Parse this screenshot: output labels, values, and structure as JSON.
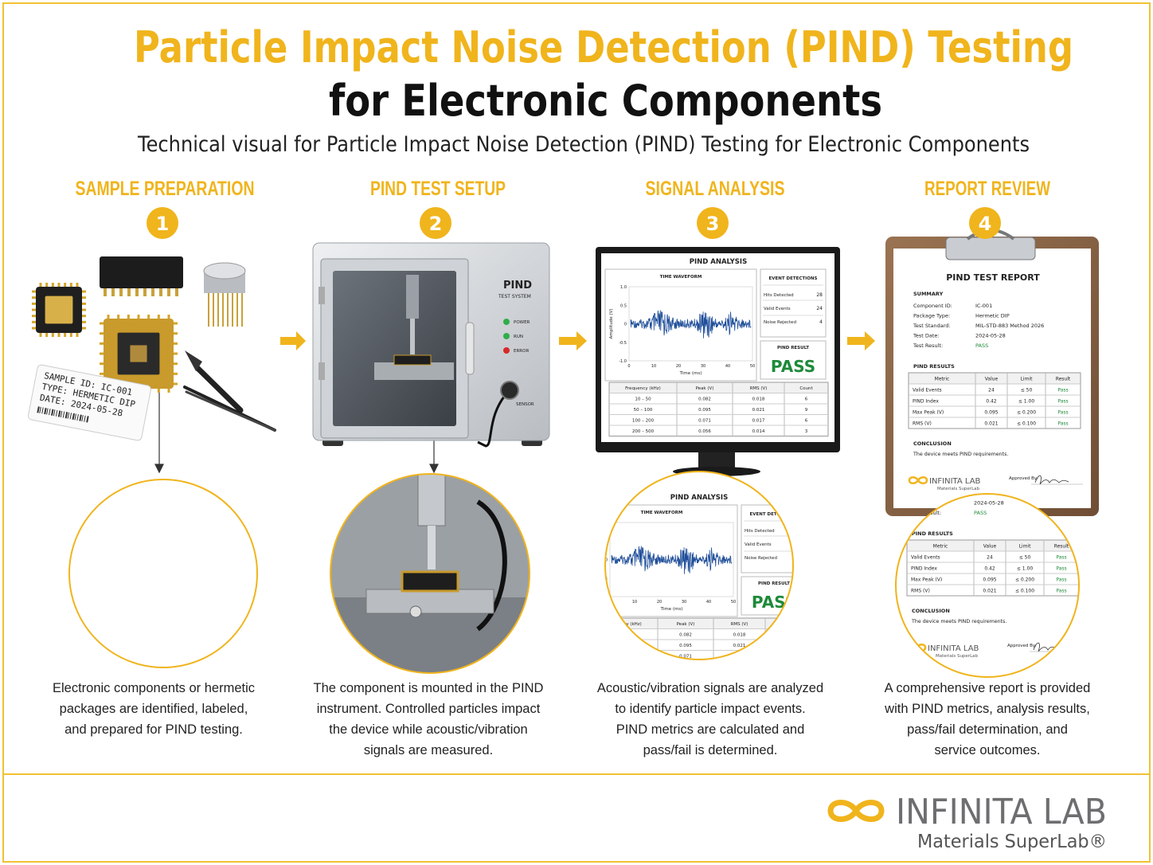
{
  "header": {
    "title": "Particle Impact Noise Detection (PIND) Testing",
    "title_line2": "for Electronic Components",
    "subtitle": "Technical visual for Particle Impact Noise Detection (PIND) Testing for Electronic Components"
  },
  "steps": [
    {
      "number": "1",
      "title": "SAMPLE PREPARATION",
      "description": [
        "Electronic components or hermetic",
        "packages are identified, labeled,",
        "and prepared for PIND testing."
      ]
    },
    {
      "number": "2",
      "title": "PIND TEST SETUP",
      "description": [
        "The component is mounted in the PIND",
        "instrument. Controlled particles impact",
        "the device while acoustic/vibration",
        "signals are measured."
      ]
    },
    {
      "number": "3",
      "title": "SIGNAL ANALYSIS",
      "description": [
        "Acoustic/vibration signals are analyzed",
        "to identify particle impact events.",
        "PIND metrics are calculated and",
        "pass/fail is determined."
      ]
    },
    {
      "number": "4",
      "title": "REPORT REVIEW",
      "description": [
        "A comprehensive report is provided",
        "with PIND metrics, analysis results,",
        "pass/fail determination, and",
        "service outcomes."
      ]
    }
  ],
  "sample_label": {
    "id": "SAMPLE ID: IC-001",
    "type": "TYPE: HERMETIC DIP",
    "date": "DATE: 2024-05-28"
  },
  "machine": {
    "name": "PIND",
    "subtitle": "TEST SYSTEM",
    "indicators": [
      "POWER",
      "RUN",
      "ERROR"
    ],
    "sensor": "SENSOR"
  },
  "analysis": {
    "title": "PIND ANALYSIS",
    "waveform_title": "TIME WAVEFORM",
    "y_label": "Amplitude (V)",
    "x_label": "Time (ms)",
    "y_ticks": [
      "1.0",
      "0.5",
      "0",
      "-0.5",
      "-1.0"
    ],
    "x_ticks": [
      "0",
      "10",
      "20",
      "30",
      "40",
      "50"
    ],
    "events_title": "EVENT DETECTIONS",
    "events": [
      [
        "Hits Detected",
        "28"
      ],
      [
        "Valid Events",
        "24"
      ],
      [
        "Noise Rejected",
        "4"
      ]
    ],
    "result_label": "PIND RESULT",
    "result": "PASS",
    "table": {
      "header": [
        "Frequency (kHz)",
        "Peak (V)",
        "RMS (V)",
        "Count"
      ],
      "rows": [
        [
          "10 – 50",
          "0.082",
          "0.018",
          "6"
        ],
        [
          "50 – 100",
          "0.095",
          "0.021",
          "9"
        ],
        [
          "100 – 200",
          "0.071",
          "0.017",
          "6"
        ],
        [
          "200 – 500",
          "0.056",
          "0.014",
          "3"
        ]
      ]
    }
  },
  "report": {
    "title": "PIND TEST REPORT",
    "summary_heading": "SUMMARY",
    "summary": [
      [
        "Component ID:",
        "IC-001"
      ],
      [
        "Package Type:",
        "Hermetic DIP"
      ],
      [
        "Test Standard:",
        "MIL-STD-883 Method 2026"
      ],
      [
        "Test Date:",
        "2024-05-28"
      ],
      [
        "Test Result:",
        "PASS"
      ]
    ],
    "results_heading": "PIND RESULTS",
    "results": {
      "header": [
        "Metric",
        "Value",
        "Limit",
        "Result"
      ],
      "rows": [
        [
          "Valid Events",
          "24",
          "≤ 50",
          "Pass"
        ],
        [
          "PIND Index",
          "0.42",
          "≤ 1.00",
          "Pass"
        ],
        [
          "Max Peak (V)",
          "0.095",
          "≤ 0.200",
          "Pass"
        ],
        [
          "RMS (V)",
          "0.021",
          "≤ 0.100",
          "Pass"
        ]
      ]
    },
    "conclusion_heading": "CONCLUSION",
    "conclusion": "The device meets PIND requirements.",
    "approved_by": "Approved By:",
    "brand": "INFINITA LAB",
    "tagline": "Materials SuperLab"
  },
  "footer": {
    "brand": "INFINITA LAB",
    "tagline": "Materials SuperLab®"
  }
}
